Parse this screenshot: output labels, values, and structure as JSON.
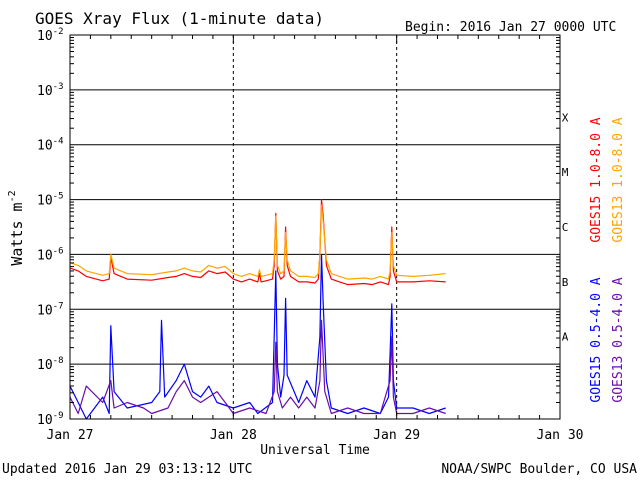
{
  "chart_data": {
    "type": "line",
    "title": "GOES Xray Flux (1-minute data)",
    "begin_label": "Begin:  2016 Jan 27 0000 UTC",
    "xlabel": "Universal Time",
    "ylabel": "Watts m",
    "ylabel_exp": "-2",
    "y_scale": "log",
    "ylim": [
      1e-09,
      0.01
    ],
    "xlim_days": [
      0,
      3
    ],
    "x_ticks": [
      {
        "day": 0,
        "label": "Jan 27"
      },
      {
        "day": 1,
        "label": "Jan 28"
      },
      {
        "day": 2,
        "label": "Jan 29"
      },
      {
        "day": 3,
        "label": "Jan 30"
      }
    ],
    "y_ticks": [
      {
        "exp": -2,
        "label": "10",
        "sup": "-2"
      },
      {
        "exp": -3,
        "label": "10",
        "sup": "-3"
      },
      {
        "exp": -4,
        "label": "10",
        "sup": "-4"
      },
      {
        "exp": -5,
        "label": "10",
        "sup": "-5"
      },
      {
        "exp": -6,
        "label": "10",
        "sup": "-6"
      },
      {
        "exp": -7,
        "label": "10",
        "sup": "-7"
      },
      {
        "exp": -8,
        "label": "10",
        "sup": "-8"
      },
      {
        "exp": -9,
        "label": "10",
        "sup": "-9"
      }
    ],
    "flare_classes": [
      {
        "label": "X",
        "exp": -3.5
      },
      {
        "label": "M",
        "exp": -4.5
      },
      {
        "label": "C",
        "exp": -5.5
      },
      {
        "label": "B",
        "exp": -6.5
      },
      {
        "label": "A",
        "exp": -7.5
      }
    ],
    "series": [
      {
        "name": "GOES15 1.0-8.0 A",
        "color": "#ff0000",
        "points": [
          [
            0,
            -6.25
          ],
          [
            0.05,
            -6.3
          ],
          [
            0.1,
            -6.4
          ],
          [
            0.2,
            -6.48
          ],
          [
            0.24,
            -6.45
          ],
          [
            0.25,
            -6.05
          ],
          [
            0.27,
            -6.35
          ],
          [
            0.35,
            -6.45
          ],
          [
            0.5,
            -6.47
          ],
          [
            0.6,
            -6.42
          ],
          [
            0.65,
            -6.4
          ],
          [
            0.7,
            -6.35
          ],
          [
            0.75,
            -6.4
          ],
          [
            0.8,
            -6.42
          ],
          [
            0.85,
            -6.3
          ],
          [
            0.9,
            -6.35
          ],
          [
            0.95,
            -6.32
          ],
          [
            1.0,
            -6.45
          ],
          [
            1.05,
            -6.5
          ],
          [
            1.1,
            -6.45
          ],
          [
            1.15,
            -6.5
          ],
          [
            1.16,
            -6.35
          ],
          [
            1.17,
            -6.5
          ],
          [
            1.2,
            -6.48
          ],
          [
            1.24,
            -6.45
          ],
          [
            1.25,
            -6.2
          ],
          [
            1.26,
            -5.25
          ],
          [
            1.27,
            -6.3
          ],
          [
            1.29,
            -6.45
          ],
          [
            1.31,
            -6.4
          ],
          [
            1.32,
            -5.5
          ],
          [
            1.33,
            -6.2
          ],
          [
            1.35,
            -6.4
          ],
          [
            1.4,
            -6.5
          ],
          [
            1.45,
            -6.5
          ],
          [
            1.5,
            -6.52
          ],
          [
            1.52,
            -6.45
          ],
          [
            1.53,
            -6.0
          ],
          [
            1.54,
            -5.0
          ],
          [
            1.55,
            -5.3
          ],
          [
            1.57,
            -6.2
          ],
          [
            1.6,
            -6.45
          ],
          [
            1.65,
            -6.5
          ],
          [
            1.7,
            -6.55
          ],
          [
            1.8,
            -6.53
          ],
          [
            1.85,
            -6.55
          ],
          [
            1.9,
            -6.5
          ],
          [
            1.95,
            -6.55
          ],
          [
            1.96,
            -6.4
          ],
          [
            1.97,
            -5.5
          ],
          [
            1.98,
            -6.3
          ],
          [
            2.0,
            -6.5
          ],
          [
            2.1,
            -6.5
          ],
          [
            2.2,
            -6.48
          ],
          [
            2.3,
            -6.5
          ]
        ]
      },
      {
        "name": "GOES13 1.0-8.0 A",
        "color": "#ffa500",
        "points": [
          [
            0,
            -6.15
          ],
          [
            0.05,
            -6.2
          ],
          [
            0.1,
            -6.3
          ],
          [
            0.2,
            -6.38
          ],
          [
            0.24,
            -6.35
          ],
          [
            0.25,
            -6.0
          ],
          [
            0.27,
            -6.25
          ],
          [
            0.35,
            -6.35
          ],
          [
            0.5,
            -6.37
          ],
          [
            0.6,
            -6.32
          ],
          [
            0.65,
            -6.3
          ],
          [
            0.7,
            -6.25
          ],
          [
            0.75,
            -6.3
          ],
          [
            0.8,
            -6.32
          ],
          [
            0.85,
            -6.2
          ],
          [
            0.9,
            -6.25
          ],
          [
            0.95,
            -6.22
          ],
          [
            1.0,
            -6.35
          ],
          [
            1.05,
            -6.4
          ],
          [
            1.1,
            -6.35
          ],
          [
            1.15,
            -6.4
          ],
          [
            1.16,
            -6.28
          ],
          [
            1.17,
            -6.4
          ],
          [
            1.2,
            -6.38
          ],
          [
            1.24,
            -6.35
          ],
          [
            1.25,
            -6.1
          ],
          [
            1.26,
            -5.3
          ],
          [
            1.27,
            -6.2
          ],
          [
            1.29,
            -6.35
          ],
          [
            1.31,
            -6.3
          ],
          [
            1.32,
            -5.6
          ],
          [
            1.33,
            -6.1
          ],
          [
            1.35,
            -6.3
          ],
          [
            1.4,
            -6.4
          ],
          [
            1.45,
            -6.4
          ],
          [
            1.5,
            -6.42
          ],
          [
            1.52,
            -6.35
          ],
          [
            1.53,
            -6.0
          ],
          [
            1.54,
            -5.1
          ],
          [
            1.55,
            -5.4
          ],
          [
            1.57,
            -6.1
          ],
          [
            1.6,
            -6.35
          ],
          [
            1.65,
            -6.4
          ],
          [
            1.7,
            -6.45
          ],
          [
            1.8,
            -6.43
          ],
          [
            1.85,
            -6.45
          ],
          [
            1.9,
            -6.4
          ],
          [
            1.95,
            -6.45
          ],
          [
            1.96,
            -6.3
          ],
          [
            1.97,
            -5.6
          ],
          [
            1.98,
            -6.2
          ],
          [
            2.0,
            -6.38
          ],
          [
            2.1,
            -6.4
          ],
          [
            2.2,
            -6.38
          ],
          [
            2.3,
            -6.35
          ]
        ]
      },
      {
        "name": "GOES15 0.5-4.0 A",
        "color": "#0000ff",
        "points": [
          [
            0,
            -8.4
          ],
          [
            0.05,
            -8.7
          ],
          [
            0.1,
            -9.0
          ],
          [
            0.2,
            -8.6
          ],
          [
            0.24,
            -8.9
          ],
          [
            0.25,
            -7.3
          ],
          [
            0.27,
            -8.5
          ],
          [
            0.35,
            -8.8
          ],
          [
            0.5,
            -8.7
          ],
          [
            0.55,
            -8.5
          ],
          [
            0.56,
            -7.2
          ],
          [
            0.58,
            -8.6
          ],
          [
            0.65,
            -8.3
          ],
          [
            0.7,
            -8.0
          ],
          [
            0.75,
            -8.5
          ],
          [
            0.8,
            -8.6
          ],
          [
            0.85,
            -8.4
          ],
          [
            0.9,
            -8.7
          ],
          [
            1.0,
            -8.8
          ],
          [
            1.1,
            -8.7
          ],
          [
            1.15,
            -8.9
          ],
          [
            1.24,
            -8.7
          ],
          [
            1.25,
            -7.5
          ],
          [
            1.26,
            -6.3
          ],
          [
            1.27,
            -8.0
          ],
          [
            1.29,
            -8.6
          ],
          [
            1.31,
            -8.2
          ],
          [
            1.32,
            -6.8
          ],
          [
            1.33,
            -8.2
          ],
          [
            1.4,
            -8.7
          ],
          [
            1.45,
            -8.3
          ],
          [
            1.5,
            -8.6
          ],
          [
            1.53,
            -7.5
          ],
          [
            1.54,
            -6.0
          ],
          [
            1.55,
            -6.9
          ],
          [
            1.57,
            -8.3
          ],
          [
            1.6,
            -8.8
          ],
          [
            1.7,
            -8.9
          ],
          [
            1.8,
            -8.8
          ],
          [
            1.9,
            -8.9
          ],
          [
            1.95,
            -8.6
          ],
          [
            1.96,
            -7.8
          ],
          [
            1.97,
            -6.9
          ],
          [
            1.98,
            -8.3
          ],
          [
            2.0,
            -8.8
          ],
          [
            2.1,
            -8.8
          ],
          [
            2.2,
            -8.9
          ],
          [
            2.3,
            -8.8
          ]
        ]
      },
      {
        "name": "GOES13 0.5-4.0 A",
        "color": "#6a0dad",
        "points": [
          [
            0,
            -8.6
          ],
          [
            0.05,
            -8.9
          ],
          [
            0.1,
            -8.4
          ],
          [
            0.2,
            -8.7
          ],
          [
            0.25,
            -8.3
          ],
          [
            0.27,
            -8.8
          ],
          [
            0.35,
            -8.7
          ],
          [
            0.45,
            -8.8
          ],
          [
            0.5,
            -8.9
          ],
          [
            0.6,
            -8.8
          ],
          [
            0.65,
            -8.5
          ],
          [
            0.7,
            -8.3
          ],
          [
            0.75,
            -8.6
          ],
          [
            0.8,
            -8.7
          ],
          [
            0.85,
            -8.6
          ],
          [
            0.9,
            -8.5
          ],
          [
            0.95,
            -8.7
          ],
          [
            1.0,
            -8.9
          ],
          [
            1.1,
            -8.8
          ],
          [
            1.2,
            -8.9
          ],
          [
            1.25,
            -8.5
          ],
          [
            1.26,
            -7.6
          ],
          [
            1.27,
            -8.5
          ],
          [
            1.3,
            -8.8
          ],
          [
            1.35,
            -8.6
          ],
          [
            1.4,
            -8.8
          ],
          [
            1.45,
            -8.6
          ],
          [
            1.5,
            -8.8
          ],
          [
            1.53,
            -8.3
          ],
          [
            1.54,
            -7.2
          ],
          [
            1.56,
            -8.5
          ],
          [
            1.6,
            -8.9
          ],
          [
            1.7,
            -8.8
          ],
          [
            1.8,
            -8.9
          ],
          [
            1.9,
            -8.9
          ],
          [
            1.96,
            -8.3
          ],
          [
            1.97,
            -7.5
          ],
          [
            1.98,
            -8.6
          ],
          [
            2.0,
            -8.9
          ],
          [
            2.1,
            -8.9
          ],
          [
            2.2,
            -8.8
          ],
          [
            2.3,
            -8.9
          ]
        ]
      }
    ],
    "right_labels": [
      {
        "text": "GOES15 1.0-8.0 A",
        "color": "#ff0000"
      },
      {
        "text": "GOES13 1.0-8.0 A",
        "color": "#ffa500"
      },
      {
        "text": "GOES15 0.5-4.0 A",
        "color": "#0000ff"
      },
      {
        "text": "GOES13 0.5-4.0 A",
        "color": "#6a0dad"
      }
    ],
    "updated_label": "Updated 2016 Jan 29 03:13:12 UTC",
    "credit_label": "NOAA/SWPC Boulder, CO USA"
  }
}
